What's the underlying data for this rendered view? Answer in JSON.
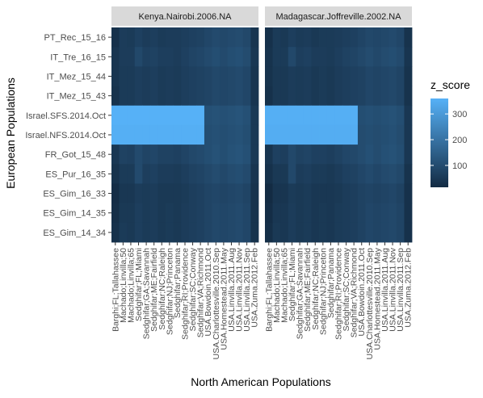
{
  "chart_data": {
    "type": "heatmap",
    "title": "",
    "xlabel": "North American Populations",
    "ylabel": "European Populations",
    "facets": [
      "Kenya.Nairobi.2006.NA",
      "Madagascar.Joffreville.2002.NA"
    ],
    "x_categories": [
      "Barghi;FL;Tallahassee",
      "Machado;Linvilla;50",
      "Machado;Linvilla;65",
      "Sedghifar;FL;Miami",
      "Sedghifar;GA;Savannah",
      "Sedghifar;ME;Fairfield",
      "Sedghifar;NC;Raleigh",
      "Sedghifar;NJ;Princeton",
      "Sedghifar;Panama",
      "Sedghifar;RI;Providence",
      "Sedghifar;SC;Conway",
      "Sedghifar;VA;Richmond",
      "USA.Bowdoin.2011.Oct",
      "USA.Charlottesville.2010.Sep",
      "USA.Homestead.2011.May",
      "USA.Linvilla.2011.Aug",
      "USA.Linvilla.2011.Nov",
      "USA.Linvilla.2011.Sep",
      "USA.Zuma.2012.Feb"
    ],
    "y_categories": [
      "PT_Rec_15_16",
      "IT_Tre_16_15",
      "IT_Mez_15_44",
      "IT_Mez_15_43",
      "Israel.SFS.2014.Oct",
      "Israel.NFS.2014.Oct",
      "FR_Got_15_48",
      "ES_Pur_16_35",
      "ES_Gim_16_33",
      "ES_Gim_14_35",
      "ES_Gim_14_34"
    ],
    "values": [
      [
        [
          30,
          60,
          55,
          70,
          60,
          65,
          55,
          60,
          60,
          65,
          70,
          75,
          85,
          95,
          90,
          95,
          100,
          90,
          40
        ],
        [
          40,
          60,
          60,
          90,
          70,
          75,
          65,
          65,
          60,
          70,
          80,
          85,
          95,
          105,
          95,
          105,
          110,
          100,
          45
        ],
        [
          40,
          55,
          55,
          65,
          60,
          65,
          55,
          60,
          55,
          65,
          70,
          75,
          80,
          90,
          85,
          90,
          95,
          85,
          40
        ],
        [
          35,
          55,
          55,
          65,
          60,
          65,
          55,
          60,
          55,
          65,
          70,
          75,
          80,
          90,
          85,
          90,
          95,
          85,
          40
        ],
        [
          360,
          360,
          360,
          360,
          360,
          360,
          360,
          360,
          360,
          360,
          360,
          360,
          110,
          115,
          110,
          115,
          120,
          110,
          50
        ],
        [
          355,
          355,
          355,
          355,
          355,
          355,
          355,
          355,
          355,
          355,
          355,
          355,
          105,
          110,
          105,
          110,
          115,
          105,
          50
        ],
        [
          45,
          75,
          70,
          95,
          80,
          85,
          75,
          75,
          70,
          80,
          90,
          95,
          105,
          115,
          105,
          115,
          120,
          110,
          50
        ],
        [
          35,
          55,
          55,
          95,
          65,
          70,
          60,
          60,
          55,
          65,
          75,
          80,
          90,
          100,
          90,
          100,
          105,
          95,
          40
        ],
        [
          20,
          45,
          45,
          60,
          55,
          60,
          50,
          50,
          50,
          55,
          65,
          70,
          80,
          85,
          80,
          85,
          90,
          80,
          35
        ],
        [
          25,
          50,
          50,
          65,
          55,
          60,
          50,
          55,
          50,
          60,
          65,
          70,
          80,
          90,
          85,
          90,
          95,
          85,
          35
        ],
        [
          30,
          55,
          50,
          65,
          55,
          60,
          50,
          55,
          50,
          60,
          65,
          70,
          80,
          90,
          85,
          90,
          95,
          85,
          35
        ]
      ],
      [
        [
          30,
          55,
          50,
          65,
          55,
          60,
          50,
          55,
          55,
          60,
          65,
          70,
          80,
          90,
          85,
          90,
          95,
          85,
          35
        ],
        [
          35,
          55,
          55,
          90,
          65,
          70,
          60,
          60,
          55,
          65,
          75,
          80,
          90,
          100,
          90,
          100,
          105,
          95,
          40
        ],
        [
          35,
          50,
          50,
          60,
          55,
          60,
          50,
          55,
          50,
          60,
          65,
          70,
          75,
          85,
          80,
          85,
          90,
          80,
          35
        ],
        [
          30,
          50,
          50,
          60,
          55,
          60,
          50,
          55,
          50,
          60,
          65,
          70,
          75,
          85,
          80,
          85,
          90,
          80,
          35
        ],
        [
          355,
          355,
          355,
          355,
          355,
          355,
          355,
          355,
          355,
          355,
          355,
          355,
          105,
          110,
          105,
          110,
          115,
          105,
          45
        ],
        [
          350,
          350,
          350,
          350,
          350,
          350,
          350,
          350,
          350,
          350,
          350,
          350,
          100,
          105,
          100,
          105,
          110,
          100,
          45
        ],
        [
          40,
          70,
          65,
          90,
          75,
          80,
          70,
          70,
          65,
          75,
          85,
          90,
          100,
          110,
          100,
          110,
          115,
          105,
          45
        ],
        [
          30,
          50,
          50,
          90,
          60,
          65,
          55,
          55,
          50,
          60,
          70,
          75,
          85,
          95,
          85,
          95,
          100,
          90,
          35
        ],
        [
          15,
          40,
          40,
          55,
          50,
          55,
          45,
          45,
          45,
          50,
          60,
          65,
          75,
          80,
          75,
          80,
          85,
          75,
          30
        ],
        [
          20,
          45,
          45,
          60,
          50,
          55,
          45,
          50,
          45,
          55,
          60,
          65,
          75,
          85,
          80,
          85,
          90,
          80,
          30
        ],
        [
          25,
          50,
          45,
          60,
          50,
          55,
          45,
          50,
          45,
          55,
          60,
          65,
          75,
          85,
          80,
          85,
          90,
          80,
          30
        ]
      ]
    ],
    "legend": {
      "title": "z_score",
      "ticks": [
        100,
        200,
        300
      ],
      "range": [
        15,
        360
      ],
      "low_color": "#132B43",
      "high_color": "#56B1F7"
    },
    "colors": {
      "panel_bg": "#EBEBEB",
      "strip_bg": "#D9D9D9",
      "axis_text": "#4D4D4D",
      "tick": "#333333"
    }
  }
}
